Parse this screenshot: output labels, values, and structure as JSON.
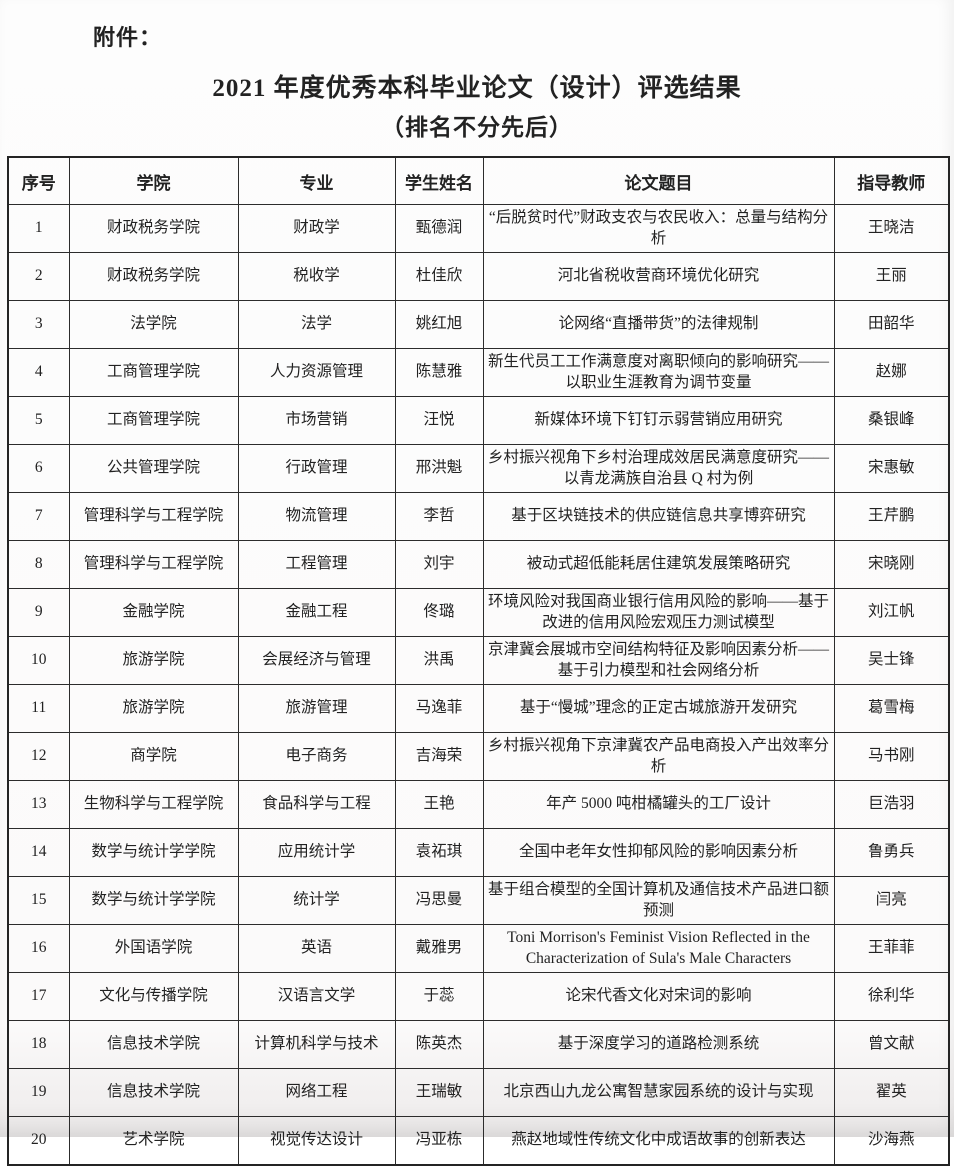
{
  "page": {
    "attachment_label": "附件：",
    "title": "2021 年度优秀本科毕业论文（设计）评选结果",
    "subtitle": "（排名不分先后）"
  },
  "table": {
    "columns": [
      "序号",
      "学院",
      "专业",
      "学生姓名",
      "论文题目",
      "指导教师"
    ],
    "rows": [
      {
        "no": "1",
        "college": "财政税务学院",
        "major": "财政学",
        "student": "甄德润",
        "title": "“后脱贫时代”财政支农与农民收入：总量与结构分析",
        "advisor": "王晓洁"
      },
      {
        "no": "2",
        "college": "财政税务学院",
        "major": "税收学",
        "student": "杜佳欣",
        "title": "河北省税收营商环境优化研究",
        "advisor": "王丽"
      },
      {
        "no": "3",
        "college": "法学院",
        "major": "法学",
        "student": "姚红旭",
        "title": "论网络“直播带货”的法律规制",
        "advisor": "田韶华"
      },
      {
        "no": "4",
        "college": "工商管理学院",
        "major": "人力资源管理",
        "student": "陈慧雅",
        "title": "新生代员工工作满意度对离职倾向的影响研究——以职业生涯教育为调节变量",
        "advisor": "赵娜"
      },
      {
        "no": "5",
        "college": "工商管理学院",
        "major": "市场营销",
        "student": "汪悦",
        "title": "新媒体环境下钉钉示弱营销应用研究",
        "advisor": "桑银峰"
      },
      {
        "no": "6",
        "college": "公共管理学院",
        "major": "行政管理",
        "student": "邢洪魁",
        "title": "乡村振兴视角下乡村治理成效居民满意度研究——以青龙满族自治县 Q 村为例",
        "advisor": "宋惠敏"
      },
      {
        "no": "7",
        "college": "管理科学与工程学院",
        "major": "物流管理",
        "student": "李哲",
        "title": "基于区块链技术的供应链信息共享博弈研究",
        "advisor": "王芹鹏"
      },
      {
        "no": "8",
        "college": "管理科学与工程学院",
        "major": "工程管理",
        "student": "刘宇",
        "title": "被动式超低能耗居住建筑发展策略研究",
        "advisor": "宋晓刚"
      },
      {
        "no": "9",
        "college": "金融学院",
        "major": "金融工程",
        "student": "佟璐",
        "title": "环境风险对我国商业银行信用风险的影响——基于改进的信用风险宏观压力测试模型",
        "advisor": "刘江帆"
      },
      {
        "no": "10",
        "college": "旅游学院",
        "major": "会展经济与管理",
        "student": "洪禹",
        "title": "京津冀会展城市空间结构特征及影响因素分析——基于引力模型和社会网络分析",
        "advisor": "吴士锋"
      },
      {
        "no": "11",
        "college": "旅游学院",
        "major": "旅游管理",
        "student": "马逸菲",
        "title": "基于“慢城”理念的正定古城旅游开发研究",
        "advisor": "葛雪梅"
      },
      {
        "no": "12",
        "college": "商学院",
        "major": "电子商务",
        "student": "吉海荣",
        "title": "乡村振兴视角下京津冀农产品电商投入产出效率分析",
        "advisor": "马书刚"
      },
      {
        "no": "13",
        "college": "生物科学与工程学院",
        "major": "食品科学与工程",
        "student": "王艳",
        "title": "年产 5000 吨柑橘罐头的工厂设计",
        "advisor": "巨浩羽"
      },
      {
        "no": "14",
        "college": "数学与统计学学院",
        "major": "应用统计学",
        "student": "袁祏琪",
        "title": "全国中老年女性抑郁风险的影响因素分析",
        "advisor": "鲁勇兵"
      },
      {
        "no": "15",
        "college": "数学与统计学学院",
        "major": "统计学",
        "student": "冯思曼",
        "title": "基于组合模型的全国计算机及通信技术产品进口额预测",
        "advisor": "闫亮"
      },
      {
        "no": "16",
        "college": "外国语学院",
        "major": "英语",
        "student": "戴雅男",
        "title": "Toni Morrison's Feminist Vision Reflected in the Characterization of Sula's Male Characters",
        "advisor": "王菲菲"
      },
      {
        "no": "17",
        "college": "文化与传播学院",
        "major": "汉语言文学",
        "student": "于蕊",
        "title": "论宋代香文化对宋词的影响",
        "advisor": "徐利华"
      },
      {
        "no": "18",
        "college": "信息技术学院",
        "major": "计算机科学与技术",
        "student": "陈英杰",
        "title": "基于深度学习的道路检测系统",
        "advisor": "曾文献"
      },
      {
        "no": "19",
        "college": "信息技术学院",
        "major": "网络工程",
        "student": "王瑞敏",
        "title": "北京西山九龙公寓智慧家园系统的设计与实现",
        "advisor": "翟英"
      },
      {
        "no": "20",
        "college": "艺术学院",
        "major": "视觉传达设计",
        "student": "冯亚栋",
        "title": "燕赵地域性传统文化中成语故事的创新表达",
        "advisor": "沙海燕"
      }
    ]
  },
  "colors": {
    "text": "#222222",
    "border": "#2c2c2c",
    "paper": "#fbfafa"
  }
}
